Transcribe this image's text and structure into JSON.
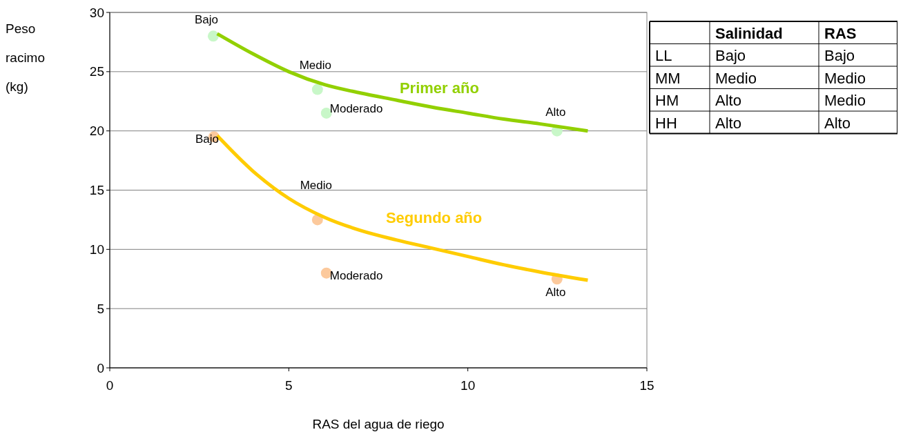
{
  "chart_data": [
    {
      "type": "scatter",
      "xlabel": "RAS del agua de riego",
      "ylabel": "Peso racimo (kg)",
      "xlim": [
        0,
        15
      ],
      "xticks": [
        0,
        5,
        10,
        15
      ],
      "ylim": [
        0,
        30
      ],
      "yticks": [
        0,
        5,
        10,
        15,
        20,
        25,
        30
      ],
      "grid": "y",
      "series": [
        {
          "type": "scatter",
          "marker": "circle",
          "color": "#c8f7c8",
          "x": [
            2.89,
            5.8,
            6.05,
            12.49
          ],
          "values": [
            28.0,
            23.5,
            21.5,
            20.0
          ]
        },
        {
          "type": "scatter",
          "marker": "circle",
          "color": "#fcc99c",
          "x": [
            2.91,
            5.8,
            6.05,
            12.49
          ],
          "values": [
            19.5,
            12.5,
            8.0,
            7.5
          ]
        },
        {
          "type": "line",
          "name": "Primer año",
          "color": "#92d000",
          "x": [
            3,
            4,
            5,
            6,
            7,
            8,
            9,
            10,
            11,
            12,
            13.35
          ],
          "values": [
            28.2,
            26.5,
            25.0,
            23.9,
            23.2,
            22.6,
            22.0,
            21.5,
            21.0,
            20.6,
            20.0
          ]
        },
        {
          "type": "line",
          "name": "Segundo año",
          "color": "#ffcc00",
          "x": [
            3,
            4,
            5,
            6,
            7,
            8,
            9,
            10,
            11,
            12,
            13.35
          ],
          "values": [
            19.6,
            16.6,
            14.3,
            12.7,
            11.6,
            10.8,
            10.1,
            9.4,
            8.7,
            8.1,
            7.4
          ]
        }
      ],
      "annotations": [
        {
          "text": "Bajo",
          "x": 2.89,
          "y": 28.0
        },
        {
          "text": "Medio",
          "x": 5.8,
          "y": 23.5
        },
        {
          "text": "Moderado",
          "x": 6.05,
          "y": 21.5
        },
        {
          "text": "Alto",
          "x": 12.49,
          "y": 20.0
        },
        {
          "text": "Bajo",
          "x": 2.91,
          "y": 19.5
        },
        {
          "text": "Medio",
          "x": 5.8,
          "y": 12.5
        },
        {
          "text": "Moderado",
          "x": 6.05,
          "y": 8.0
        },
        {
          "text": "Alto",
          "x": 12.49,
          "y": 7.5
        }
      ]
    },
    {
      "type": "other",
      "annotations": [
        "Salinidad",
        "RAS",
        "LL",
        "Bajo",
        "Bajo",
        "MM",
        "Medio",
        "Medio",
        "HM",
        "Alto",
        "Medio",
        "HH",
        "Alto",
        "Alto"
      ]
    }
  ]
}
